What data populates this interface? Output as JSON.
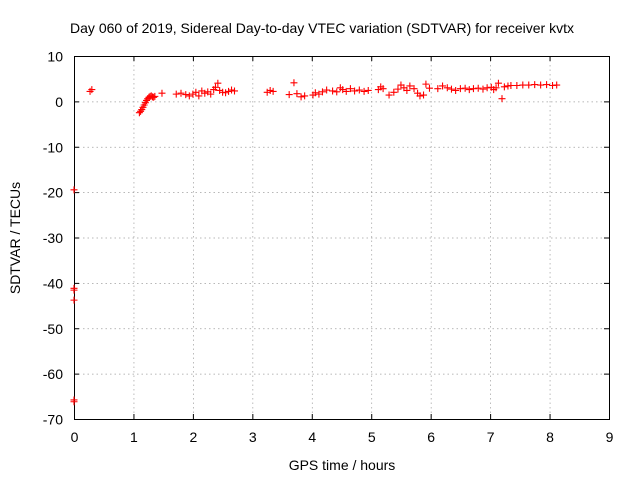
{
  "chart_data": {
    "type": "scatter",
    "title": "Day 060 of 2019, Sidereal Day-to-day VTEC variation (SDTVAR) for receiver kvtx",
    "xlabel": "GPS time / hours",
    "ylabel": "SDTVAR / TECUs",
    "xlim": [
      0,
      9
    ],
    "ylim": [
      -70,
      10
    ],
    "xticks": [
      "0",
      "1",
      "2",
      "3",
      "4",
      "5",
      "6",
      "7",
      "8",
      "9"
    ],
    "yticks": [
      "10",
      "0",
      "-10",
      "-20",
      "-30",
      "-40",
      "-50",
      "-60",
      "-70"
    ],
    "grid": true,
    "marker": "plus",
    "series_color": "#ff0000",
    "series": [
      {
        "points": [
          [
            0.0,
            -19.5
          ],
          [
            0.0,
            -41.2
          ],
          [
            0.0,
            -41.6
          ],
          [
            0.0,
            -43.8
          ],
          [
            0.0,
            -65.8
          ],
          [
            0.0,
            -66.2
          ],
          [
            0.27,
            2.2
          ],
          [
            0.3,
            2.6
          ],
          [
            1.1,
            -2.5
          ],
          [
            1.12,
            -2.2
          ],
          [
            1.14,
            -1.8
          ],
          [
            1.16,
            -1.3
          ],
          [
            1.18,
            -0.8
          ],
          [
            1.2,
            -0.3
          ],
          [
            1.22,
            0.2
          ],
          [
            1.24,
            0.6
          ],
          [
            1.26,
            0.9
          ],
          [
            1.28,
            1.1
          ],
          [
            1.3,
            1.2
          ],
          [
            1.32,
            1.0
          ],
          [
            1.34,
            0.9
          ],
          [
            1.36,
            1.1
          ],
          [
            1.48,
            1.8
          ],
          [
            1.72,
            1.6
          ],
          [
            1.8,
            1.8
          ],
          [
            1.88,
            1.5
          ],
          [
            1.94,
            1.2
          ],
          [
            2.0,
            1.6
          ],
          [
            2.05,
            2.0
          ],
          [
            2.1,
            1.2
          ],
          [
            2.15,
            2.3
          ],
          [
            2.2,
            1.8
          ],
          [
            2.25,
            2.1
          ],
          [
            2.3,
            1.6
          ],
          [
            2.35,
            2.6
          ],
          [
            2.38,
            3.1
          ],
          [
            2.42,
            4.0
          ],
          [
            2.45,
            2.4
          ],
          [
            2.5,
            2.0
          ],
          [
            2.55,
            1.9
          ],
          [
            2.6,
            2.2
          ],
          [
            2.65,
            2.5
          ],
          [
            2.7,
            2.3
          ],
          [
            3.25,
            2.0
          ],
          [
            3.3,
            2.4
          ],
          [
            3.35,
            2.2
          ],
          [
            3.62,
            1.5
          ],
          [
            3.7,
            4.1
          ],
          [
            3.75,
            1.7
          ],
          [
            3.82,
            1.0
          ],
          [
            3.88,
            1.2
          ],
          [
            4.02,
            1.4
          ],
          [
            4.06,
            1.9
          ],
          [
            4.12,
            1.6
          ],
          [
            4.18,
            2.1
          ],
          [
            4.25,
            2.5
          ],
          [
            4.35,
            2.3
          ],
          [
            4.42,
            2.1
          ],
          [
            4.48,
            3.0
          ],
          [
            4.52,
            2.6
          ],
          [
            4.58,
            2.2
          ],
          [
            4.65,
            2.8
          ],
          [
            4.72,
            2.3
          ],
          [
            4.8,
            2.5
          ],
          [
            4.88,
            2.2
          ],
          [
            4.95,
            2.4
          ],
          [
            5.12,
            2.6
          ],
          [
            5.16,
            3.2
          ],
          [
            5.2,
            2.8
          ],
          [
            5.3,
            1.4
          ],
          [
            5.38,
            2.0
          ],
          [
            5.45,
            2.7
          ],
          [
            5.5,
            3.6
          ],
          [
            5.55,
            3.0
          ],
          [
            5.6,
            2.4
          ],
          [
            5.65,
            3.4
          ],
          [
            5.72,
            2.8
          ],
          [
            5.78,
            1.8
          ],
          [
            5.82,
            1.2
          ],
          [
            5.88,
            1.4
          ],
          [
            5.92,
            3.8
          ],
          [
            5.98,
            2.9
          ],
          [
            6.12,
            2.8
          ],
          [
            6.2,
            3.4
          ],
          [
            6.28,
            3.0
          ],
          [
            6.35,
            2.7
          ],
          [
            6.42,
            2.4
          ],
          [
            6.5,
            2.8
          ],
          [
            6.58,
            2.9
          ],
          [
            6.65,
            2.6
          ],
          [
            6.72,
            2.8
          ],
          [
            6.8,
            2.9
          ],
          [
            6.88,
            2.7
          ],
          [
            6.95,
            3.0
          ],
          [
            7.02,
            3.1
          ],
          [
            7.06,
            2.6
          ],
          [
            7.1,
            3.0
          ],
          [
            7.14,
            4.0
          ],
          [
            7.2,
            0.6
          ],
          [
            7.24,
            3.2
          ],
          [
            7.3,
            3.4
          ],
          [
            7.35,
            3.5
          ],
          [
            7.45,
            3.5
          ],
          [
            7.55,
            3.6
          ],
          [
            7.65,
            3.6
          ],
          [
            7.75,
            3.7
          ],
          [
            7.85,
            3.6
          ],
          [
            7.95,
            3.7
          ],
          [
            8.05,
            3.5
          ],
          [
            8.12,
            3.6
          ]
        ]
      }
    ]
  }
}
